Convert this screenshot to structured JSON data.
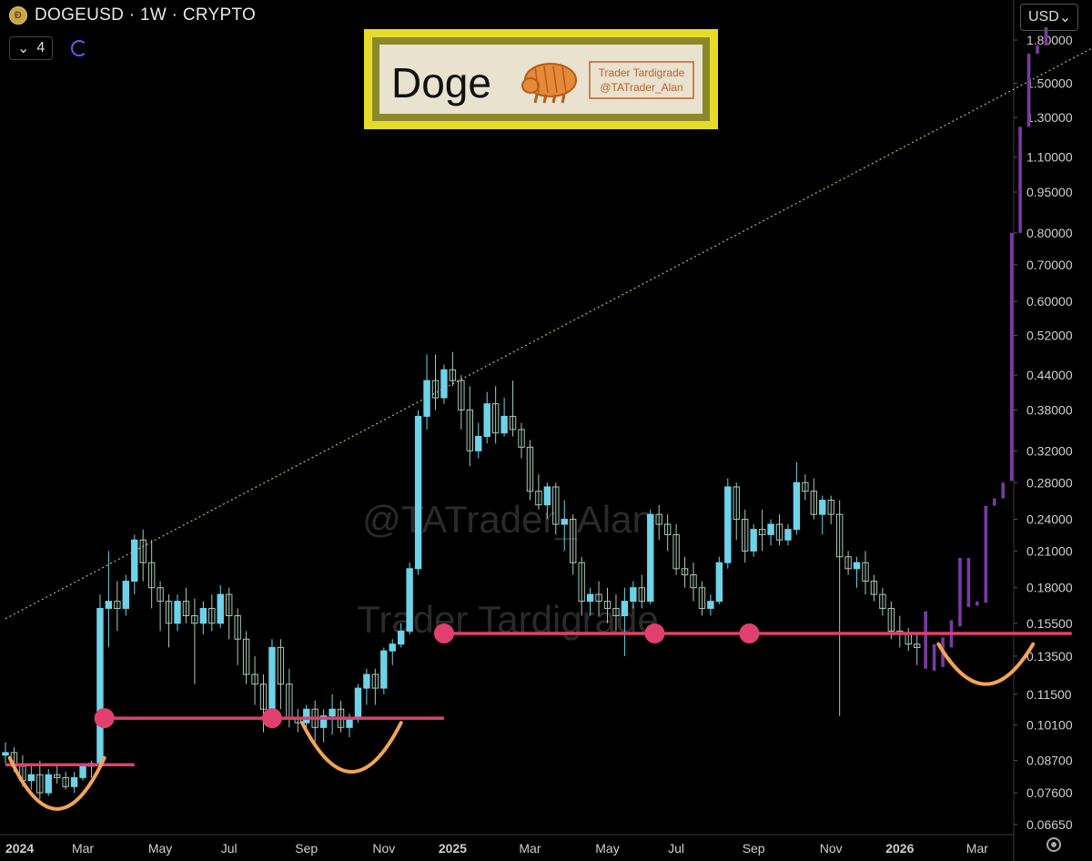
{
  "header": {
    "symbol_title": "DOGEUSD · 1W · CRYPTO",
    "coin_icon": "doge-coin-icon"
  },
  "controls": {
    "stepper_value": "4",
    "sync_icon": "sync-icon"
  },
  "currency_button": {
    "label": "USD"
  },
  "logo_box": {
    "title": "Doge",
    "brand_line1": "Trader Tardigrade",
    "brand_line2": "@TATrader_Alan"
  },
  "watermark": {
    "line1": "@TATrader_Alan",
    "line2": "Trader Tardigrade"
  },
  "colors": {
    "up": "#6fd3e8",
    "down": "#a7c9b8",
    "projection": "#7a3aa6",
    "support": "#e0406e",
    "curve": "#f2a458",
    "trend": "#8fd16a",
    "logo_border": "#e6db2a"
  },
  "chart_data": {
    "type": "candlestick",
    "title": "",
    "xlabel": "",
    "ylabel": "",
    "scale": "log",
    "ylim": [
      0.0635,
      2.05
    ],
    "y_ticks": [
      "1.80000",
      "1.50000",
      "1.30000",
      "1.10000",
      "0.95000",
      "0.80000",
      "0.70000",
      "0.60000",
      "0.52000",
      "0.44000",
      "0.38000",
      "0.32000",
      "0.28000",
      "0.24000",
      "0.21000",
      "0.18000",
      "0.15500",
      "0.13500",
      "0.11500",
      "0.10100",
      "0.08700",
      "0.07600",
      "0.06650"
    ],
    "x_ticks": [
      "2024",
      "Mar",
      "May",
      "Jul",
      "Sep",
      "Nov",
      "2025",
      "Mar",
      "May",
      "Jul",
      "Sep",
      "Nov",
      "2026",
      "Mar"
    ],
    "x_tick_weeks": [
      0,
      9,
      18,
      26,
      35,
      44,
      52,
      61,
      70,
      78,
      87,
      96,
      104,
      113
    ],
    "candles": [
      [
        0.089,
        0.094,
        0.086,
        0.09
      ],
      [
        0.09,
        0.092,
        0.083,
        0.085
      ],
      [
        0.085,
        0.089,
        0.078,
        0.08
      ],
      [
        0.08,
        0.086,
        0.077,
        0.082
      ],
      [
        0.082,
        0.087,
        0.074,
        0.076
      ],
      [
        0.076,
        0.084,
        0.075,
        0.082
      ],
      [
        0.082,
        0.085,
        0.079,
        0.081
      ],
      [
        0.081,
        0.083,
        0.077,
        0.078
      ],
      [
        0.078,
        0.083,
        0.076,
        0.081
      ],
      [
        0.081,
        0.086,
        0.08,
        0.085
      ],
      [
        0.085,
        0.087,
        0.081,
        0.086
      ],
      [
        0.086,
        0.175,
        0.085,
        0.165
      ],
      [
        0.165,
        0.21,
        0.14,
        0.17
      ],
      [
        0.17,
        0.185,
        0.15,
        0.165
      ],
      [
        0.165,
        0.19,
        0.16,
        0.185
      ],
      [
        0.185,
        0.225,
        0.175,
        0.22
      ],
      [
        0.22,
        0.23,
        0.185,
        0.2
      ],
      [
        0.2,
        0.22,
        0.165,
        0.18
      ],
      [
        0.18,
        0.185,
        0.15,
        0.17
      ],
      [
        0.17,
        0.175,
        0.14,
        0.155
      ],
      [
        0.155,
        0.175,
        0.15,
        0.17
      ],
      [
        0.17,
        0.18,
        0.155,
        0.16
      ],
      [
        0.16,
        0.172,
        0.12,
        0.155
      ],
      [
        0.155,
        0.17,
        0.148,
        0.165
      ],
      [
        0.165,
        0.175,
        0.15,
        0.155
      ],
      [
        0.155,
        0.182,
        0.152,
        0.175
      ],
      [
        0.175,
        0.18,
        0.145,
        0.16
      ],
      [
        0.16,
        0.165,
        0.13,
        0.145
      ],
      [
        0.145,
        0.15,
        0.12,
        0.125
      ],
      [
        0.125,
        0.135,
        0.11,
        0.12
      ],
      [
        0.12,
        0.125,
        0.098,
        0.108
      ],
      [
        0.108,
        0.145,
        0.106,
        0.14
      ],
      [
        0.14,
        0.145,
        0.108,
        0.12
      ],
      [
        0.12,
        0.128,
        0.1,
        0.104
      ],
      [
        0.104,
        0.108,
        0.098,
        0.102
      ],
      [
        0.102,
        0.11,
        0.1,
        0.108
      ],
      [
        0.108,
        0.112,
        0.094,
        0.1
      ],
      [
        0.1,
        0.108,
        0.094,
        0.105
      ],
      [
        0.105,
        0.115,
        0.097,
        0.108
      ],
      [
        0.108,
        0.112,
        0.098,
        0.1
      ],
      [
        0.1,
        0.106,
        0.096,
        0.104
      ],
      [
        0.104,
        0.12,
        0.102,
        0.118
      ],
      [
        0.118,
        0.128,
        0.11,
        0.125
      ],
      [
        0.125,
        0.128,
        0.11,
        0.118
      ],
      [
        0.118,
        0.14,
        0.115,
        0.138
      ],
      [
        0.138,
        0.145,
        0.13,
        0.142
      ],
      [
        0.142,
        0.155,
        0.14,
        0.15
      ],
      [
        0.15,
        0.2,
        0.148,
        0.195
      ],
      [
        0.195,
        0.38,
        0.19,
        0.37
      ],
      [
        0.37,
        0.48,
        0.35,
        0.43
      ],
      [
        0.43,
        0.48,
        0.38,
        0.4
      ],
      [
        0.4,
        0.46,
        0.39,
        0.45
      ],
      [
        0.45,
        0.485,
        0.42,
        0.43
      ],
      [
        0.43,
        0.44,
        0.35,
        0.38
      ],
      [
        0.38,
        0.42,
        0.3,
        0.32
      ],
      [
        0.32,
        0.36,
        0.31,
        0.34
      ],
      [
        0.34,
        0.41,
        0.33,
        0.39
      ],
      [
        0.39,
        0.42,
        0.33,
        0.345
      ],
      [
        0.345,
        0.4,
        0.34,
        0.37
      ],
      [
        0.37,
        0.43,
        0.34,
        0.35
      ],
      [
        0.35,
        0.36,
        0.31,
        0.325
      ],
      [
        0.325,
        0.335,
        0.26,
        0.27
      ],
      [
        0.27,
        0.29,
        0.25,
        0.255
      ],
      [
        0.255,
        0.28,
        0.24,
        0.275
      ],
      [
        0.275,
        0.28,
        0.225,
        0.235
      ],
      [
        0.235,
        0.26,
        0.21,
        0.24
      ],
      [
        0.24,
        0.245,
        0.19,
        0.2
      ],
      [
        0.2,
        0.205,
        0.16,
        0.17
      ],
      [
        0.17,
        0.18,
        0.16,
        0.175
      ],
      [
        0.175,
        0.185,
        0.16,
        0.17
      ],
      [
        0.17,
        0.18,
        0.155,
        0.165
      ],
      [
        0.165,
        0.175,
        0.15,
        0.16
      ],
      [
        0.16,
        0.18,
        0.135,
        0.17
      ],
      [
        0.17,
        0.185,
        0.165,
        0.18
      ],
      [
        0.18,
        0.19,
        0.165,
        0.17
      ],
      [
        0.17,
        0.25,
        0.168,
        0.245
      ],
      [
        0.245,
        0.255,
        0.22,
        0.235
      ],
      [
        0.235,
        0.245,
        0.21,
        0.225
      ],
      [
        0.225,
        0.235,
        0.19,
        0.195
      ],
      [
        0.195,
        0.205,
        0.18,
        0.19
      ],
      [
        0.19,
        0.2,
        0.17,
        0.18
      ],
      [
        0.18,
        0.185,
        0.16,
        0.165
      ],
      [
        0.165,
        0.175,
        0.16,
        0.17
      ],
      [
        0.17,
        0.205,
        0.168,
        0.2
      ],
      [
        0.2,
        0.285,
        0.195,
        0.275
      ],
      [
        0.275,
        0.28,
        0.22,
        0.24
      ],
      [
        0.24,
        0.25,
        0.2,
        0.21
      ],
      [
        0.21,
        0.235,
        0.205,
        0.23
      ],
      [
        0.23,
        0.25,
        0.21,
        0.225
      ],
      [
        0.225,
        0.24,
        0.215,
        0.235
      ],
      [
        0.235,
        0.245,
        0.215,
        0.22
      ],
      [
        0.22,
        0.235,
        0.215,
        0.23
      ],
      [
        0.23,
        0.305,
        0.225,
        0.28
      ],
      [
        0.28,
        0.29,
        0.26,
        0.27
      ],
      [
        0.27,
        0.285,
        0.24,
        0.245
      ],
      [
        0.245,
        0.265,
        0.225,
        0.26
      ],
      [
        0.26,
        0.265,
        0.235,
        0.245
      ],
      [
        0.245,
        0.26,
        0.105,
        0.205
      ],
      [
        0.205,
        0.21,
        0.19,
        0.195
      ],
      [
        0.195,
        0.205,
        0.18,
        0.2
      ],
      [
        0.2,
        0.21,
        0.175,
        0.185
      ],
      [
        0.185,
        0.19,
        0.17,
        0.175
      ],
      [
        0.175,
        0.18,
        0.16,
        0.165
      ],
      [
        0.165,
        0.17,
        0.145,
        0.15
      ],
      [
        0.15,
        0.16,
        0.14,
        0.148
      ],
      [
        0.148,
        0.152,
        0.138,
        0.142
      ],
      [
        0.142,
        0.148,
        0.13,
        0.14
      ]
    ],
    "projection_bars": [
      [
        0.128,
        0.163
      ],
      [
        0.127,
        0.142
      ],
      [
        0.129,
        0.146
      ],
      [
        0.14,
        0.157
      ],
      [
        0.153,
        0.204
      ],
      [
        0.166,
        0.204
      ],
      [
        0.167,
        0.17
      ],
      [
        0.169,
        0.254
      ],
      [
        0.254,
        0.262
      ],
      [
        0.262,
        0.28
      ],
      [
        0.282,
        0.8
      ],
      [
        0.8,
        1.25
      ],
      [
        1.25,
        1.7
      ],
      [
        1.7,
        1.76
      ],
      [
        1.76,
        1.9
      ]
    ],
    "support_lines": [
      {
        "price": 0.0855,
        "from_week": 0,
        "to_week": 15
      },
      {
        "price": 0.104,
        "from_week": 11,
        "to_week": 51
      },
      {
        "price": 0.1485,
        "from_week": 51,
        "to_week": 124
      }
    ],
    "marker_dots": [
      {
        "week": 11.5,
        "price": 0.104
      },
      {
        "week": 31,
        "price": 0.104
      },
      {
        "week": 51,
        "price": 0.1485
      },
      {
        "week": 75.5,
        "price": 0.1485
      },
      {
        "week": 86.5,
        "price": 0.1485
      }
    ],
    "bowl_curves": [
      {
        "from_week": 0.5,
        "to_week": 11.5,
        "top_price": 0.088,
        "bottom_price": 0.071
      },
      {
        "from_week": 34.5,
        "to_week": 46,
        "top_price": 0.102,
        "bottom_price": 0.083
      },
      {
        "from_week": 108.5,
        "to_week": 119.5,
        "top_price": 0.142,
        "bottom_price": 0.12
      }
    ],
    "trendline": [
      {
        "week": 0,
        "price": 0.158
      },
      {
        "week": 131,
        "price": 1.9
      }
    ]
  }
}
